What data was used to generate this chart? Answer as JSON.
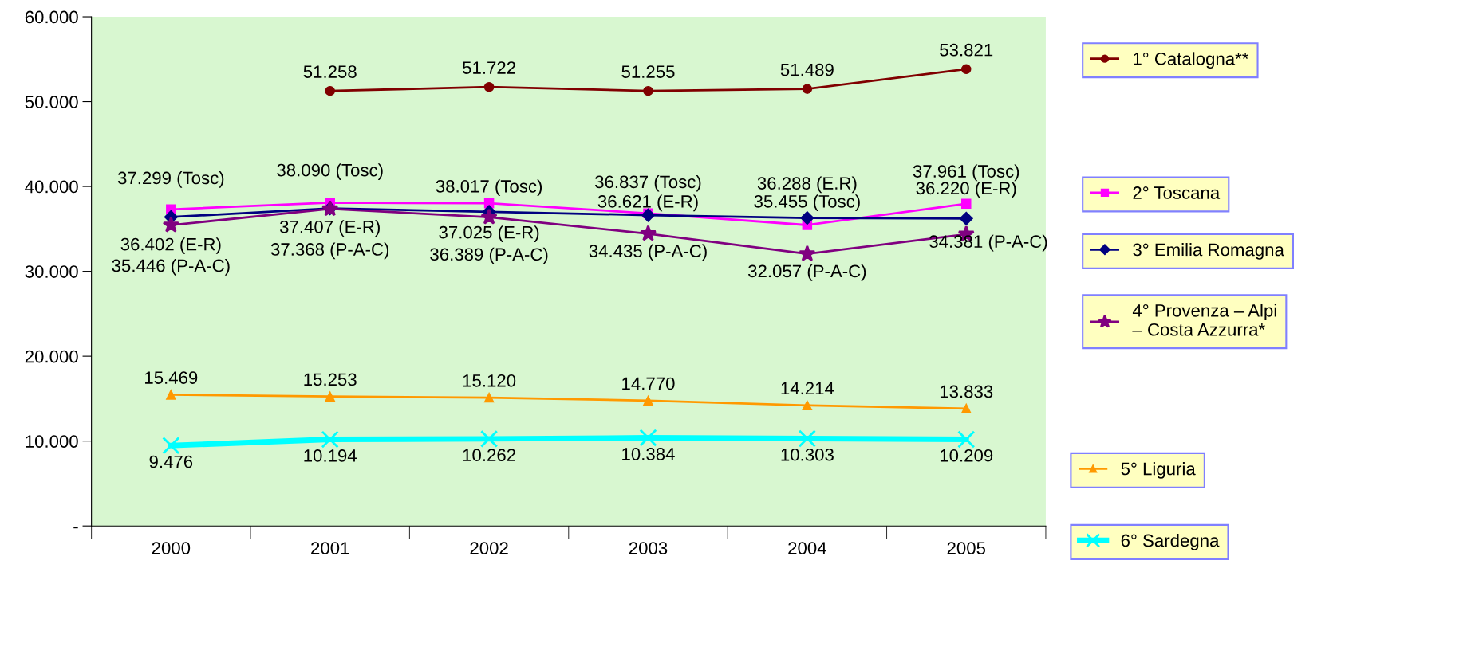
{
  "chart_data": {
    "type": "line",
    "categories": [
      "2000",
      "2001",
      "2002",
      "2003",
      "2004",
      "2005"
    ],
    "series": [
      {
        "name": "1° Catalogna**",
        "color": "#800000",
        "marker": "circle",
        "values": [
          null,
          51258,
          51722,
          51255,
          51489,
          53821
        ],
        "value_labels": [
          null,
          "51.258",
          "51.722",
          "51.255",
          "51.489",
          "53.821"
        ]
      },
      {
        "name": "2° Toscana",
        "color": "#ff00ff",
        "marker": "square",
        "values": [
          37299,
          38090,
          38017,
          36837,
          35455,
          37961
        ],
        "value_labels": [
          "37.299 (Tosc)",
          "38.090 (Tosc)",
          "38.017 (Tosc)",
          "36.837 (Tosc)",
          "35.455 (Tosc)",
          "37.961 (Tosc)"
        ]
      },
      {
        "name": "3° Emilia Romagna",
        "color": "#000080",
        "marker": "diamond",
        "values": [
          36402,
          37407,
          37025,
          36621,
          36288,
          36220
        ],
        "value_labels": [
          "36.402 (E-R)",
          "37.407 (E-R)",
          "37.025 (E-R)",
          "36.621 (E-R)",
          "36.288 (E.R)",
          "36.220 (E-R)"
        ]
      },
      {
        "name": "4° Provenza – Alpi – Costa Azzurra*",
        "color": "#800080",
        "marker": "star",
        "values": [
          35446,
          37368,
          36389,
          34435,
          32057,
          34381
        ],
        "value_labels": [
          "35.446 (P-A-C)",
          "37.368 (P-A-C)",
          "36.389 (P-A-C)",
          "34.435 (P-A-C)",
          "32.057 (P-A-C)",
          "34.381 (P-A-C)"
        ]
      },
      {
        "name": "5° Liguria",
        "color": "#ff9900",
        "marker": "triangle",
        "values": [
          15469,
          15253,
          15120,
          14770,
          14214,
          13833
        ],
        "value_labels": [
          "15.469",
          "15.253",
          "15.120",
          "14.770",
          "14.214",
          "13.833"
        ]
      },
      {
        "name": "6° Sardegna",
        "color": "#00ffff",
        "marker": "cross",
        "values": [
          9476,
          10194,
          10262,
          10384,
          10303,
          10209
        ],
        "value_labels": [
          "9.476",
          "10.194",
          "10.262",
          "10.384",
          "10.303",
          "10.209"
        ]
      }
    ],
    "ylim": [
      0,
      60000
    ],
    "yticks": [
      {
        "value": 0,
        "label": "-"
      },
      {
        "value": 10000,
        "label": "10.000"
      },
      {
        "value": 20000,
        "label": "20.000"
      },
      {
        "value": 30000,
        "label": "30.000"
      },
      {
        "value": 40000,
        "label": "40.000"
      },
      {
        "value": 50000,
        "label": "50.000"
      },
      {
        "value": 60000,
        "label": "60.000"
      }
    ],
    "grid": false,
    "legend": "right",
    "line_style": "solid"
  }
}
